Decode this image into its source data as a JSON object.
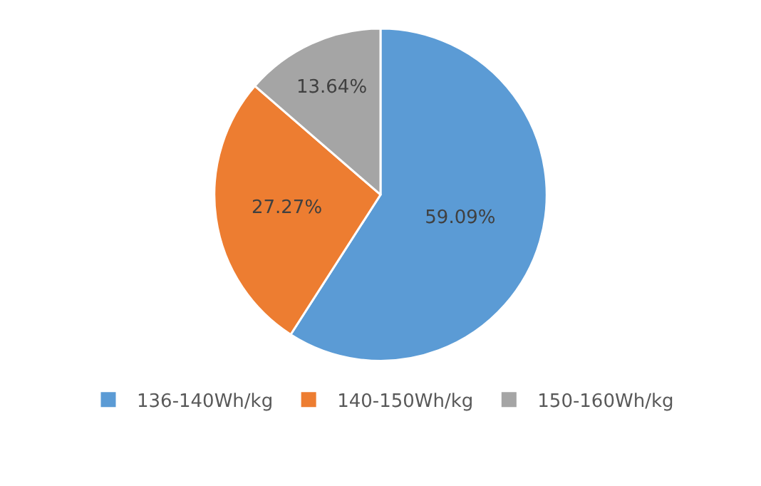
{
  "chart_data": {
    "type": "pie",
    "categories": [
      "136-140Wh/kg",
      "140-150Wh/kg",
      "150-160Wh/kg"
    ],
    "values": [
      59.09,
      27.27,
      13.64
    ],
    "colors": [
      "#5b9bd5",
      "#ed7d31",
      "#a5a5a5"
    ],
    "value_labels": [
      "59.09%",
      "27.27%",
      "13.64%"
    ],
    "legend": "bottom"
  }
}
